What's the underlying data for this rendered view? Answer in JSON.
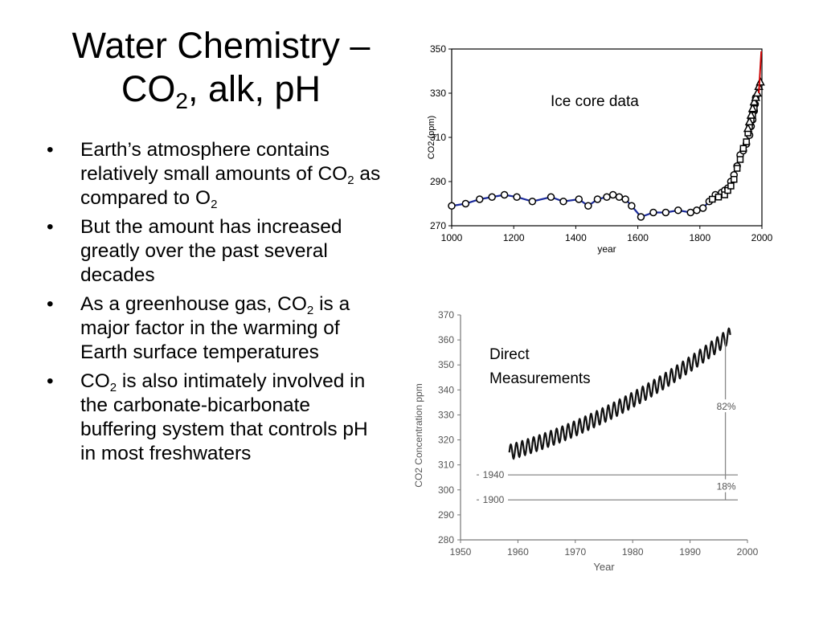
{
  "slide": {
    "title_line1": "Water Chemistry –",
    "title_co": "CO",
    "title_sub": "2",
    "title_rest": ", alk, pH",
    "bullets": [
      {
        "parts": [
          {
            "t": "Earth’s atmosphere contains relatively small amounts of CO"
          },
          {
            "t": "2",
            "sub": true
          },
          {
            "t": " as compared to O"
          },
          {
            "t": "2",
            "sub": true
          }
        ]
      },
      {
        "parts": [
          {
            "t": "But the amount has increased greatly over the past several decades"
          }
        ]
      },
      {
        "parts": [
          {
            "t": "As a greenhouse gas, CO"
          },
          {
            "t": "2",
            "sub": true
          },
          {
            "t": " is a major factor in the warming of Earth surface temperatures"
          }
        ]
      },
      {
        "parts": [
          {
            "t": "CO"
          },
          {
            "t": "2",
            "sub": true
          },
          {
            "t": " is also intimately involved in the carbonate-bicarbonate buffering system that controls pH in most freshwaters"
          }
        ]
      }
    ],
    "bullet_glyph": "•"
  },
  "chart_data": [
    {
      "type": "line",
      "annotation": "Ice core data",
      "xlabel": "year",
      "ylabel": "CO2 (ppm)",
      "xlim": [
        1000,
        2000
      ],
      "ylim": [
        270,
        350
      ],
      "xticks": [
        1000,
        1200,
        1400,
        1600,
        1800,
        2000
      ],
      "yticks": [
        270,
        290,
        310,
        330,
        350
      ],
      "grid": false,
      "colors": {
        "line": "#1a2a9a",
        "recent": "#cc0000",
        "marker": "#000000"
      },
      "series": [
        {
          "marker": "circle",
          "x": [
            1000,
            1045,
            1090,
            1130,
            1170,
            1210,
            1260,
            1320,
            1360,
            1410,
            1440,
            1470,
            1500,
            1520,
            1540,
            1560,
            1580,
            1610,
            1650,
            1690,
            1730,
            1770,
            1790,
            1810,
            1830,
            1850,
            1870,
            1880,
            1890,
            1900,
            1910,
            1920,
            1930,
            1940,
            1950,
            1960,
            1965,
            1970,
            1975,
            1978,
            1980
          ],
          "y": [
            279,
            280,
            282,
            283,
            284,
            283,
            281,
            283,
            281,
            282,
            279,
            282,
            283,
            284,
            283,
            282,
            279,
            274,
            276,
            276,
            277,
            276,
            277,
            278,
            281,
            284,
            285,
            286,
            287,
            290,
            293,
            297,
            302,
            304,
            307,
            311,
            315,
            318,
            322,
            325,
            328
          ]
        },
        {
          "marker": "square",
          "x": [
            1840,
            1860,
            1880,
            1890,
            1900,
            1910,
            1920,
            1930,
            1940,
            1950,
            1955,
            1960,
            1965,
            1970,
            1975
          ],
          "y": [
            282,
            283,
            284,
            286,
            288,
            291,
            296,
            300,
            305,
            308,
            312,
            315,
            318,
            320,
            323
          ]
        },
        {
          "marker": "triangle",
          "x": [
            1955,
            1960,
            1965,
            1970,
            1975,
            1980,
            1985,
            1990,
            1995
          ],
          "y": [
            314,
            317,
            320,
            323,
            326,
            328,
            330,
            333,
            335
          ]
        },
        {
          "marker": "none",
          "recent": true,
          "x": [
            1990,
            1998
          ],
          "y": [
            330,
            349
          ]
        }
      ]
    },
    {
      "type": "line",
      "annotation_line1": "Direct",
      "annotation_line2": "Measurements",
      "xlabel": "Year",
      "ylabel": "CO2 Concentration ppm",
      "xlim": [
        1950,
        2000
      ],
      "ylim": [
        280,
        370
      ],
      "xticks": [
        1950,
        1960,
        1970,
        1980,
        1990,
        2000
      ],
      "yticks": [
        280,
        290,
        300,
        310,
        320,
        330,
        340,
        350,
        360,
        370
      ],
      "grid": false,
      "reference_lines": [
        {
          "label": "1940",
          "y": 306
        },
        {
          "label": "1900",
          "y": 296
        }
      ],
      "bracket_labels": [
        "82%",
        "18%"
      ],
      "colors": {
        "line": "#111111",
        "axis": "#777777",
        "ref": "#888888"
      },
      "series": [
        {
          "x_start": 1958.5,
          "x_end": 1997,
          "start": 315,
          "end": 362,
          "seasonal_amplitude": 3
        }
      ]
    }
  ]
}
